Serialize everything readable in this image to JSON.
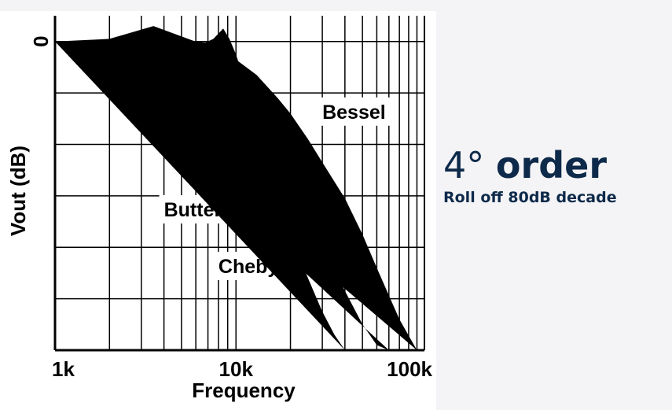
{
  "side": {
    "order_number": "4°",
    "order_word": "order",
    "rolloff": "Roll off 80dB decade"
  },
  "colors": {
    "heading": "#0e2a4a",
    "curve": "#000000"
  },
  "chart_data": {
    "type": "line",
    "xlabel": "Frequency",
    "ylabel": "Vout (dB)",
    "x_scale": "log",
    "xlim": [
      1000,
      110000
    ],
    "ylim": [
      -120,
      10
    ],
    "grid": true,
    "x_ticks": [
      {
        "value": 1000,
        "label": "1k"
      },
      {
        "value": 10000,
        "label": "10k"
      },
      {
        "value": 100000,
        "label": "100k"
      }
    ],
    "y_ticks": [
      {
        "value": 0,
        "label": "0"
      }
    ],
    "series": [
      {
        "name": "Bessel",
        "x": [
          1000,
          3000,
          6000,
          9000,
          10000,
          13000,
          17000,
          20000,
          25000,
          30000,
          40000,
          50000,
          60000,
          80000,
          100000
        ],
        "y": [
          0,
          0,
          -1,
          -5,
          -7,
          -13,
          -22,
          -28,
          -38,
          -47,
          -61,
          -75,
          -88,
          -108,
          -120
        ]
      },
      {
        "name": "Butterworth",
        "x": [
          1000,
          3000,
          6000,
          8000,
          9500,
          11000,
          13000,
          16000,
          20000,
          25000,
          30000,
          40000,
          50000,
          60000,
          70000
        ],
        "y": [
          0,
          0,
          0,
          -1,
          -4,
          -12,
          -22,
          -37,
          -50,
          -65,
          -78,
          -97,
          -110,
          -118,
          -120
        ]
      },
      {
        "name": "Chebyshev",
        "x": [
          1000,
          2000,
          3500,
          5000,
          6500,
          7500,
          8500,
          9200,
          10000,
          11000,
          13000,
          16000,
          20000,
          25000,
          30000,
          35000,
          40000
        ],
        "y": [
          0,
          1,
          6,
          2,
          -1,
          1,
          5,
          1,
          -5,
          -14,
          -32,
          -54,
          -75,
          -92,
          -105,
          -114,
          -120
        ]
      }
    ],
    "annotations": [
      {
        "text": "Bessel",
        "at": [
          30000,
          -30
        ],
        "arrow": false
      },
      {
        "text": "Butterworth",
        "at": [
          4000,
          -68
        ],
        "arrow_to": [
          19500,
          -48
        ]
      },
      {
        "text": "Chebyshev",
        "at": [
          8000,
          -90
        ],
        "arrow": false
      }
    ]
  }
}
